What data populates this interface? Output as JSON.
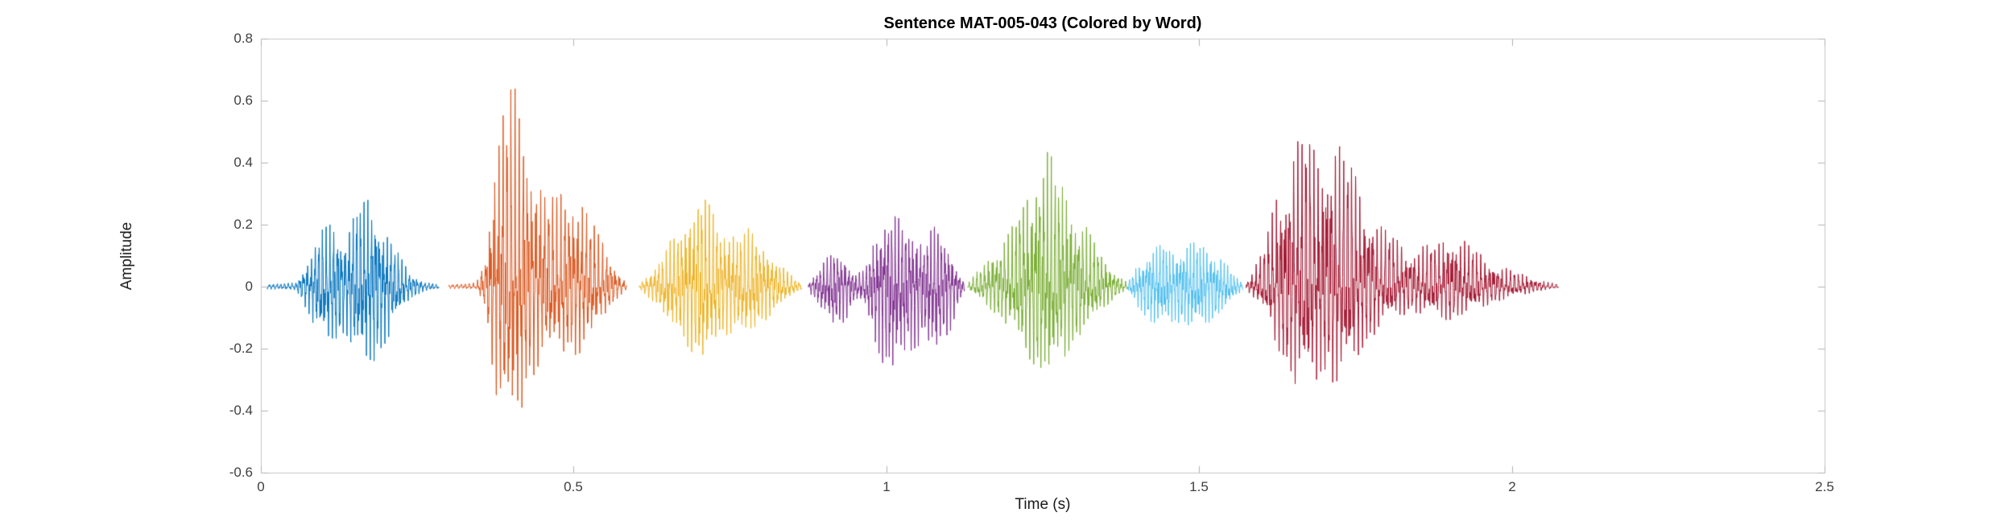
{
  "figure": {
    "title": "Sentence MAT-005-043 (Colored by Word)"
  },
  "chart_data": {
    "type": "line",
    "subtype": "audio-waveform-colored-by-word",
    "title": "Sentence MAT-005-043 (Colored by Word)",
    "xlabel": "Time (s)",
    "ylabel": "Amplitude",
    "xlim": [
      0,
      2.5
    ],
    "ylim": [
      -0.6,
      0.8
    ],
    "grid": false,
    "legend": null,
    "x_tick_labels": [
      "0",
      "0.5",
      "1",
      "1.5",
      "2",
      "2.5"
    ],
    "x_tick_values": [
      0,
      0.5,
      1,
      1.5,
      2,
      2.5
    ],
    "y_tick_labels": [
      "-0.6",
      "-0.4",
      "-0.2",
      "0",
      "0.2",
      "0.4",
      "0.6",
      "0.8"
    ],
    "y_tick_values": [
      -0.6,
      -0.4,
      -0.2,
      0,
      0.2,
      0.4,
      0.6,
      0.8
    ],
    "axes_colors": {
      "box": "#c6c6c6",
      "tick_mark": "#b0b0b0",
      "tick_text": "#3f3f3f",
      "title_text": "#000000"
    },
    "series_note": "Speech waveform amplitude vs time; one colored segment per word (envelope peaks in amplitude units, times in seconds)",
    "segments": [
      {
        "word_index": 1,
        "color": "#0072BD",
        "t_start": 0.01,
        "t_end": 0.285,
        "osc_freq": 165,
        "neg_ratio": 0.95,
        "envelope": [
          [
            0.01,
            0.008
          ],
          [
            0.055,
            0.012
          ],
          [
            0.075,
            0.08
          ],
          [
            0.095,
            0.17
          ],
          [
            0.115,
            0.2
          ],
          [
            0.135,
            0.15
          ],
          [
            0.155,
            0.25
          ],
          [
            0.175,
            0.27
          ],
          [
            0.195,
            0.2
          ],
          [
            0.215,
            0.12
          ],
          [
            0.235,
            0.05
          ],
          [
            0.26,
            0.015
          ],
          [
            0.285,
            0.008
          ]
        ]
      },
      {
        "word_index": 2,
        "color": "#D95319",
        "t_start": 0.3,
        "t_end": 0.585,
        "osc_freq": 150,
        "neg_ratio": 0.73,
        "envelope": [
          [
            0.3,
            0.008
          ],
          [
            0.345,
            0.012
          ],
          [
            0.36,
            0.1
          ],
          [
            0.375,
            0.45
          ],
          [
            0.39,
            0.58
          ],
          [
            0.405,
            0.62
          ],
          [
            0.42,
            0.5
          ],
          [
            0.435,
            0.38
          ],
          [
            0.45,
            0.3
          ],
          [
            0.47,
            0.27
          ],
          [
            0.49,
            0.3
          ],
          [
            0.51,
            0.28
          ],
          [
            0.53,
            0.2
          ],
          [
            0.55,
            0.12
          ],
          [
            0.57,
            0.05
          ],
          [
            0.585,
            0.01
          ]
        ]
      },
      {
        "word_index": 3,
        "color": "#EDB120",
        "t_start": 0.605,
        "t_end": 0.865,
        "osc_freq": 160,
        "neg_ratio": 0.85,
        "envelope": [
          [
            0.605,
            0.01
          ],
          [
            0.63,
            0.06
          ],
          [
            0.65,
            0.13
          ],
          [
            0.67,
            0.18
          ],
          [
            0.69,
            0.24
          ],
          [
            0.705,
            0.3
          ],
          [
            0.72,
            0.24
          ],
          [
            0.74,
            0.18
          ],
          [
            0.76,
            0.16
          ],
          [
            0.78,
            0.18
          ],
          [
            0.8,
            0.14
          ],
          [
            0.82,
            0.09
          ],
          [
            0.845,
            0.04
          ],
          [
            0.865,
            0.01
          ]
        ]
      },
      {
        "word_index": 4,
        "color": "#7E2F8E",
        "t_start": 0.875,
        "t_end": 1.125,
        "osc_freq": 175,
        "neg_ratio": 1.15,
        "envelope": [
          [
            0.875,
            0.01
          ],
          [
            0.895,
            0.06
          ],
          [
            0.915,
            0.12
          ],
          [
            0.935,
            0.09
          ],
          [
            0.95,
            0.04
          ],
          [
            0.965,
            0.05
          ],
          [
            0.98,
            0.14
          ],
          [
            1.0,
            0.23
          ],
          [
            1.02,
            0.21
          ],
          [
            1.04,
            0.17
          ],
          [
            1.06,
            0.15
          ],
          [
            1.08,
            0.19
          ],
          [
            1.1,
            0.13
          ],
          [
            1.115,
            0.05
          ],
          [
            1.125,
            0.012
          ]
        ]
      },
      {
        "word_index": 5,
        "color": "#77AC30",
        "t_start": 1.13,
        "t_end": 1.385,
        "osc_freq": 160,
        "neg_ratio": 0.72,
        "envelope": [
          [
            1.13,
            0.01
          ],
          [
            1.155,
            0.07
          ],
          [
            1.18,
            0.13
          ],
          [
            1.2,
            0.18
          ],
          [
            1.22,
            0.27
          ],
          [
            1.245,
            0.38
          ],
          [
            1.26,
            0.42
          ],
          [
            1.275,
            0.34
          ],
          [
            1.295,
            0.26
          ],
          [
            1.315,
            0.2
          ],
          [
            1.335,
            0.13
          ],
          [
            1.36,
            0.06
          ],
          [
            1.385,
            0.012
          ]
        ]
      },
      {
        "word_index": 6,
        "color": "#4DBEEE",
        "t_start": 1.385,
        "t_end": 1.57,
        "osc_freq": 185,
        "neg_ratio": 0.95,
        "envelope": [
          [
            1.385,
            0.012
          ],
          [
            1.4,
            0.06
          ],
          [
            1.42,
            0.11
          ],
          [
            1.44,
            0.13
          ],
          [
            1.46,
            0.11
          ],
          [
            1.48,
            0.13
          ],
          [
            1.5,
            0.14
          ],
          [
            1.52,
            0.11
          ],
          [
            1.54,
            0.08
          ],
          [
            1.555,
            0.04
          ],
          [
            1.57,
            0.012
          ]
        ]
      },
      {
        "word_index": 7,
        "color": "#A2142F",
        "t_start": 1.575,
        "t_end": 2.075,
        "osc_freq": 150,
        "neg_ratio": 0.66,
        "envelope": [
          [
            1.575,
            0.012
          ],
          [
            1.6,
            0.1
          ],
          [
            1.62,
            0.25
          ],
          [
            1.64,
            0.38
          ],
          [
            1.655,
            0.46
          ],
          [
            1.67,
            0.5
          ],
          [
            1.685,
            0.44
          ],
          [
            1.7,
            0.4
          ],
          [
            1.715,
            0.45
          ],
          [
            1.73,
            0.42
          ],
          [
            1.75,
            0.34
          ],
          [
            1.77,
            0.26
          ],
          [
            1.79,
            0.19
          ],
          [
            1.81,
            0.15
          ],
          [
            1.84,
            0.12
          ],
          [
            1.87,
            0.13
          ],
          [
            1.9,
            0.16
          ],
          [
            1.925,
            0.14
          ],
          [
            1.95,
            0.1
          ],
          [
            1.975,
            0.07
          ],
          [
            2.0,
            0.05
          ],
          [
            2.03,
            0.03
          ],
          [
            2.055,
            0.015
          ],
          [
            2.075,
            0.008
          ]
        ]
      }
    ]
  }
}
